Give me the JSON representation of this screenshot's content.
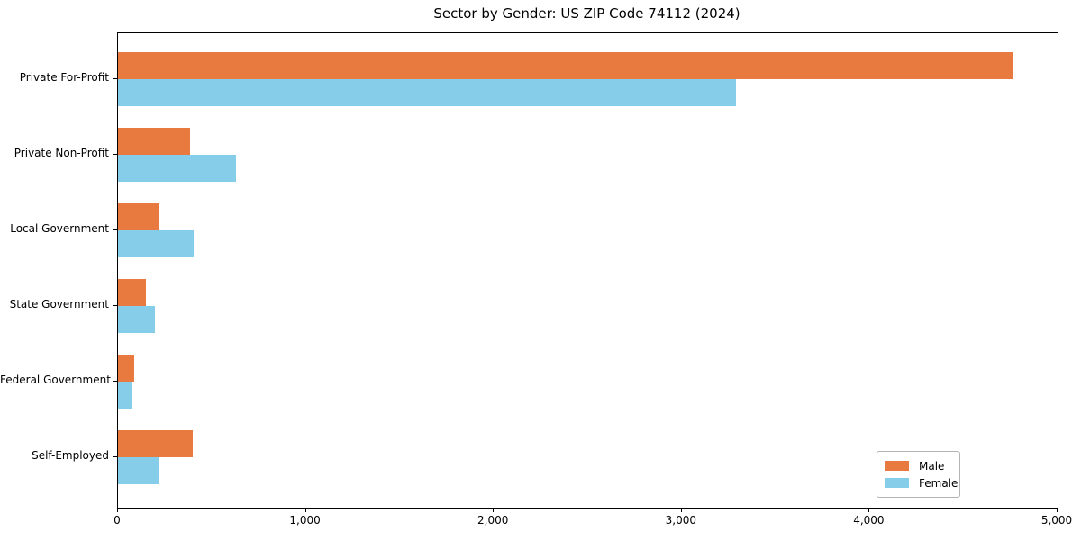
{
  "chart_data": {
    "type": "bar",
    "orientation": "horizontal",
    "title": "Sector by Gender: US ZIP Code 74112 (2024)",
    "categories": [
      "Private For-Profit",
      "Private Non-Profit",
      "Local Government",
      "State Government",
      "Federal Government",
      "Self-Employed"
    ],
    "series": [
      {
        "name": "Male",
        "color": "#e8793f",
        "values": [
          4765,
          385,
          216,
          150,
          88,
          400
        ]
      },
      {
        "name": "Female",
        "color": "#85cde8",
        "values": [
          3290,
          630,
          405,
          197,
          77,
          219
        ]
      }
    ],
    "xlabel": "",
    "ylabel": "",
    "xlim": [
      0,
      5000
    ],
    "xticks": [
      0,
      1000,
      2000,
      3000,
      4000,
      5000
    ],
    "xtick_labels": [
      "0",
      "1,000",
      "2,000",
      "3,000",
      "4,000",
      "5,000"
    ],
    "grid": false,
    "legend": {
      "position": "lower right",
      "entries": [
        "Male",
        "Female"
      ]
    }
  }
}
